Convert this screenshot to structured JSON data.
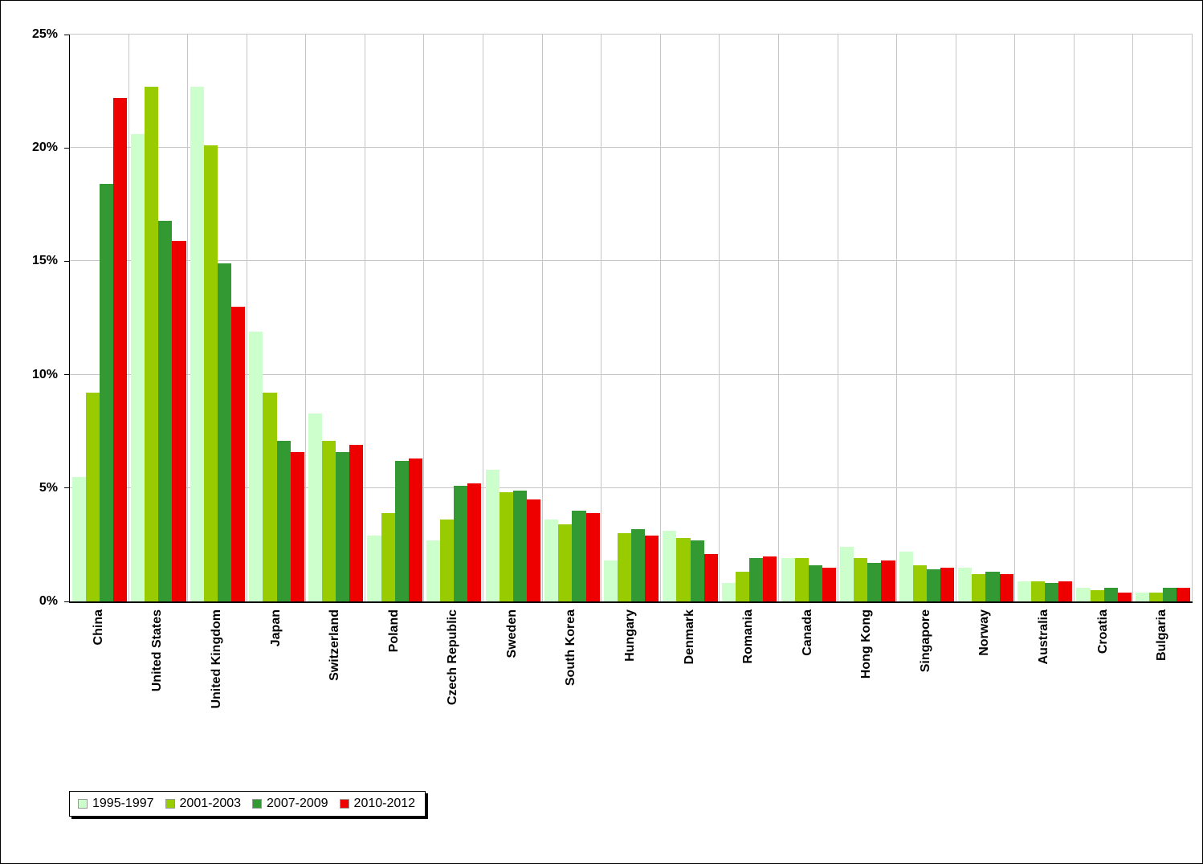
{
  "chart_data": {
    "type": "bar",
    "title": "",
    "xlabel": "",
    "ylabel": "",
    "ylim": [
      0,
      25
    ],
    "ytick_step": 5,
    "yticks": [
      "0%",
      "5%",
      "10%",
      "15%",
      "20%",
      "25%"
    ],
    "grid": true,
    "legend_position": "bottom-left",
    "colors": {
      "series1": "#ccffcc",
      "series2": "#99cc00",
      "series3": "#339933",
      "series4": "#ee0000",
      "gridline": "#c6c6c6",
      "axis": "#000000"
    },
    "categories": [
      "China",
      "United States",
      "United Kingdom",
      "Japan",
      "Switzerland",
      "Poland",
      "Czech Republic",
      "Sweden",
      "South Korea",
      "Hungary",
      "Denmark",
      "Romania",
      "Canada",
      "Hong Kong",
      "Singapore",
      "Norway",
      "Australia",
      "Croatia",
      "Bulgaria"
    ],
    "series": [
      {
        "name": "1995-1997",
        "color": "#ccffcc",
        "values": [
          5.5,
          20.6,
          22.7,
          11.9,
          8.3,
          2.9,
          2.7,
          5.8,
          3.6,
          1.8,
          3.1,
          0.8,
          1.9,
          2.4,
          2.2,
          1.5,
          0.9,
          0.6,
          0.4
        ]
      },
      {
        "name": "2001-2003",
        "color": "#99cc00",
        "values": [
          9.2,
          22.7,
          20.1,
          9.2,
          7.1,
          3.9,
          3.6,
          4.8,
          3.4,
          3.0,
          2.8,
          1.3,
          1.9,
          1.9,
          1.6,
          1.2,
          0.9,
          0.5,
          0.4
        ]
      },
      {
        "name": "2007-2009",
        "color": "#339933",
        "values": [
          18.4,
          16.8,
          14.9,
          7.1,
          6.6,
          6.2,
          5.1,
          4.9,
          4.0,
          3.2,
          2.7,
          1.9,
          1.6,
          1.7,
          1.4,
          1.3,
          0.8,
          0.6,
          0.6
        ]
      },
      {
        "name": "2010-2012",
        "color": "#ee0000",
        "values": [
          22.2,
          15.9,
          13.0,
          6.6,
          6.9,
          6.3,
          5.2,
          4.5,
          3.9,
          2.9,
          2.1,
          2.0,
          1.5,
          1.8,
          1.5,
          1.2,
          0.9,
          0.4,
          0.6
        ]
      }
    ]
  }
}
